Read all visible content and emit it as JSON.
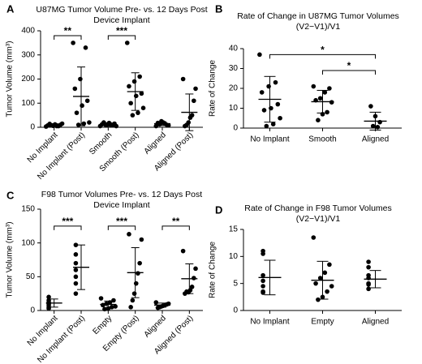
{
  "chart_data": [
    {
      "type": "dot",
      "panel": "A",
      "title": [
        "U87MG Tumor Volume Pre- vs. 12 Days Post",
        "Device Implant"
      ],
      "y_label": "Tumor Volume (mm³)",
      "categories": [
        "No Implant",
        "No Implant (Post)",
        "Smooth",
        "Smooth (Post)",
        "Aligned",
        "Aligned (Post)"
      ],
      "points": [
        [
          3,
          5,
          6,
          8,
          10,
          12,
          14,
          15,
          5,
          8
        ],
        [
          350,
          330,
          200,
          160,
          110,
          90,
          60,
          20,
          15,
          10
        ],
        [
          5,
          8,
          10,
          12,
          15,
          18,
          20,
          5,
          8,
          10
        ],
        [
          350,
          210,
          190,
          170,
          140,
          130,
          100,
          80,
          60,
          50
        ],
        [
          5,
          8,
          10,
          15,
          20,
          25,
          12,
          18
        ],
        [
          200,
          160,
          110,
          50,
          40,
          20,
          10,
          5
        ]
      ],
      "means": [
        10,
        128,
        12,
        148,
        15,
        62
      ],
      "sd": [
        5,
        122,
        7,
        78,
        8,
        76
      ],
      "ylim": [
        0,
        400
      ],
      "yticks": [
        0,
        100,
        200,
        300,
        400
      ],
      "annotations": [
        {
          "text": "**",
          "from": 0,
          "to": 1,
          "y": 380
        },
        {
          "text": "***",
          "from": 2,
          "to": 3,
          "y": 380
        }
      ]
    },
    {
      "type": "dot",
      "panel": "B",
      "title": [
        "Rate of Change in U87MG Tumor Volumes",
        "(V2−V1)/V1"
      ],
      "y_label": "Rate of Change",
      "categories": [
        "No Implant",
        "Smooth",
        "Aligned"
      ],
      "points": [
        [
          37,
          23,
          21,
          18,
          12,
          10,
          9,
          5,
          2,
          1
        ],
        [
          21,
          20,
          18,
          15,
          14,
          13,
          8,
          7,
          4
        ],
        [
          11,
          6,
          3,
          1,
          0.5
        ]
      ],
      "means": [
        14.5,
        13.3,
        3.5
      ],
      "sd": [
        11.5,
        5.7,
        4.5
      ],
      "ylim": [
        0,
        40
      ],
      "yticks": [
        0,
        10,
        20,
        30,
        40
      ],
      "annotations": [
        {
          "text": "*",
          "from": 0,
          "to": 2,
          "y": 37
        },
        {
          "text": "*",
          "from": 1,
          "to": 2,
          "y": 29
        }
      ]
    },
    {
      "type": "dot",
      "panel": "C",
      "title": [
        "F98 Tumor Volumes Pre- vs. 12 Days Post",
        "Device Implant"
      ],
      "y_label": "Tumor Volume (mm³)",
      "categories": [
        "No Implant",
        "No Implant (Post)",
        "Empty",
        "Empty (Post)",
        "Aligned",
        "Aligned (Post)"
      ],
      "points": [
        [
          20,
          15,
          12,
          10,
          8,
          5,
          3
        ],
        [
          97,
          83,
          70,
          60,
          50,
          40,
          25
        ],
        [
          18,
          15,
          12,
          10,
          8,
          6,
          5,
          3,
          2
        ],
        [
          113,
          105,
          70,
          55,
          40,
          25,
          15,
          5
        ],
        [
          12,
          10,
          9,
          8,
          7,
          6,
          5,
          4
        ],
        [
          88,
          62,
          48,
          35,
          30,
          27,
          28,
          25
        ]
      ],
      "means": [
        11,
        64,
        9,
        56,
        8,
        47
      ],
      "sd": [
        6,
        33,
        5,
        37,
        3,
        22
      ],
      "ylim": [
        0,
        150
      ],
      "yticks": [
        0,
        50,
        100,
        150
      ],
      "annotations": [
        {
          "text": "***",
          "from": 0,
          "to": 1,
          "y": 125
        },
        {
          "text": "***",
          "from": 2,
          "to": 3,
          "y": 125
        },
        {
          "text": "**",
          "from": 4,
          "to": 5,
          "y": 125
        }
      ]
    },
    {
      "type": "dot",
      "panel": "D",
      "title": [
        "Rate of Change in F98 Tumor Volumes",
        "(V2−V1)/V1"
      ],
      "y_label": "Rate of Change",
      "categories": [
        "No Implant",
        "Empty",
        "Aligned"
      ],
      "points": [
        [
          11,
          10.5,
          6.5,
          5.5,
          4.5,
          3.5,
          3.3
        ],
        [
          13.5,
          8.5,
          7,
          6,
          5,
          4.5,
          3.5,
          2.5,
          2
        ],
        [
          9,
          8,
          6.5,
          6,
          5,
          4.8,
          4
        ]
      ],
      "means": [
        6.1,
        5.6,
        5.8
      ],
      "sd": [
        3.2,
        3.5,
        1.6
      ],
      "ylim": [
        0,
        15
      ],
      "yticks": [
        0,
        5,
        10,
        15
      ],
      "annotations": []
    }
  ]
}
